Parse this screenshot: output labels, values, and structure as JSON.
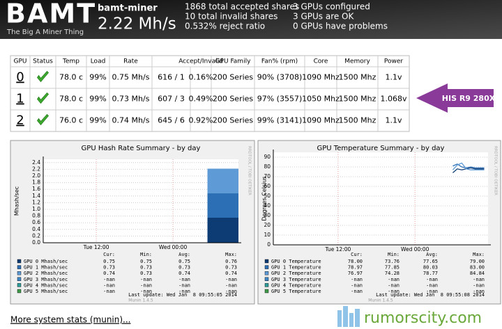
{
  "header": {
    "logo": "BAMT",
    "tagline": "The Big A Miner Thing",
    "host": "bamt-miner",
    "hashrate": "2.22 Mh/s",
    "stats": [
      [
        "1868 total accepted shares",
        "10 total invalid shares",
        "0.532% reject ratio"
      ],
      [
        "3 GPUs configured",
        "3 GPUs are OK",
        "0 GPUs have problems"
      ]
    ]
  },
  "table": {
    "columns": [
      "GPU",
      "Status",
      "Temp",
      "Load",
      "Rate",
      "Accept/Invalid",
      "GPU Family",
      "Fan% (rpm)",
      "Core",
      "Memory",
      "Power"
    ],
    "rows": [
      [
        "0",
        "78.0 c",
        "99%",
        "0.75 Mh/s",
        "616 / 1",
        "0.16%",
        "200 Series",
        "90% (3708)",
        "1090 Mhz",
        "1500 Mhz",
        "1.1v"
      ],
      [
        "1",
        "78.0 c",
        "99%",
        "0.73 Mh/s",
        "607 / 3",
        "0.49%",
        "200 Series",
        "97% (3557)",
        "1050 Mhz",
        "1500 Mhz",
        "1.068v"
      ],
      [
        "2",
        "76.0 c",
        "99%",
        "0.74 Mh/s",
        "645 / 6",
        "0.92%",
        "200 Series",
        "99% (3141)",
        "1090 Mhz",
        "1500 Mhz",
        "1.1v"
      ]
    ]
  },
  "annotation": "HIS R9 280X",
  "chart_data": [
    {
      "type": "area",
      "stacked": true,
      "title": "GPU Hash Rate Summary - by day",
      "ylabel": "Mhash/sec",
      "side_label": "RRDTOOL / TOBI OETIKER",
      "xlim": [
        3.7,
        34.25
      ],
      "xticks": [
        {
          "value": 12,
          "label": "Tue 12:00"
        },
        {
          "value": 24,
          "label": "Wed 00:00"
        }
      ],
      "ylim": [
        0,
        2.5
      ],
      "yticks": [
        {
          "value": 0,
          "label": "0.0"
        },
        0.2,
        0.4,
        0.6,
        0.8,
        {
          "value": 1,
          "label": "1.0"
        },
        1.2,
        1.4,
        1.6,
        1.8,
        {
          "value": 2,
          "label": "2.0"
        },
        2.2,
        2.4
      ],
      "grid": true,
      "stat_columns": [
        "Cur:",
        "Min:",
        "Avg:",
        "Max:"
      ],
      "series": [
        {
          "name": "GPU 0 Mhash/sec",
          "color": "#0d3b73",
          "x": [
            29.4,
            34.25
          ],
          "values": [
            0.75,
            0.75
          ],
          "stats": [
            "0.75",
            "0.75",
            "0.75",
            "0.76"
          ]
        },
        {
          "name": "GPU 1 Mhash/sec",
          "color": "#2c6fb5",
          "x": [
            29.4,
            34.25
          ],
          "values": [
            0.73,
            0.73
          ],
          "stats": [
            "0.73",
            "0.73",
            "0.73",
            "0.73"
          ]
        },
        {
          "name": "GPU 2 Mhash/sec",
          "color": "#5d9ad6",
          "x": [
            29.4,
            34.25
          ],
          "values": [
            0.74,
            0.74
          ],
          "stats": [
            "0.74",
            "0.73",
            "0.74",
            "0.74"
          ]
        },
        {
          "name": "GPU 3 Mhash/sec",
          "color": "#3f86c4",
          "x": [
            29.4,
            34.25
          ],
          "values": [
            null,
            null
          ],
          "stats": [
            "-nan",
            "-nan",
            "-nan",
            "-nan"
          ]
        },
        {
          "name": "GPU 4 Mhash/sec",
          "color": "#2e9c9a",
          "x": [
            29.4,
            34.25
          ],
          "values": [
            null,
            null
          ],
          "stats": [
            "-nan",
            "-nan",
            "-nan",
            "-nan"
          ]
        },
        {
          "name": "GPU 5 Mhash/sec",
          "color": "#3f9b4a",
          "x": [
            29.4,
            34.25
          ],
          "values": [
            null,
            null
          ],
          "stats": [
            "-nan",
            "-nan",
            "-nan",
            "-nan"
          ]
        }
      ],
      "footer": "Munin 1.4.5",
      "last_update": "Last update: Wed Jan  8 09:55:05 2014"
    },
    {
      "type": "line",
      "title": "GPU Temperature Summary - by day",
      "ylabel": "Degrees Celsius",
      "side_label": "RRDTOOL / TOBI OETIKER",
      "xlim": [
        1.9,
        35.4
      ],
      "xticks": [
        {
          "value": 12,
          "label": "Tue 12:00"
        },
        {
          "value": 24,
          "label": "Wed 00:00"
        }
      ],
      "ylim": [
        0,
        95
      ],
      "yticks": [
        0,
        10,
        20,
        30,
        40,
        50,
        60,
        70,
        80,
        90
      ],
      "grid": true,
      "stat_columns": [
        "Cur:",
        "Min:",
        "Avg:",
        "Max:"
      ],
      "series": [
        {
          "name": "GPU 0 Temperature",
          "color": "#0d3b73",
          "x": [
            29.9,
            30.6,
            31.3,
            32.0,
            32.7,
            33.4,
            34.1,
            34.8
          ],
          "values": [
            74,
            78,
            77,
            78,
            79,
            78,
            78,
            78
          ],
          "stats": [
            "78.00",
            "73.76",
            "77.65",
            "79.00"
          ]
        },
        {
          "name": "GPU 1 Temperature",
          "color": "#2c6fb5",
          "x": [
            29.9,
            30.6,
            31.3,
            32.0,
            32.7,
            33.4,
            34.1,
            34.8
          ],
          "values": [
            81,
            83,
            80,
            79,
            80,
            79,
            79,
            79
          ],
          "stats": [
            "78.97",
            "77.85",
            "80.03",
            "83.00"
          ]
        },
        {
          "name": "GPU 2 Temperature",
          "color": "#5d9ad6",
          "x": [
            29.9,
            30.6,
            31.3,
            32.0,
            32.7,
            33.4,
            34.1,
            34.8
          ],
          "values": [
            77,
            82,
            84,
            78,
            77,
            77,
            77,
            77
          ],
          "stats": [
            "76.97",
            "74.28",
            "78.77",
            "84.84"
          ]
        },
        {
          "name": "GPU 3 Temperature",
          "color": "#3f86c4",
          "x": [
            29.9,
            30.6,
            31.3,
            32.0,
            32.7,
            33.4,
            34.1,
            34.8
          ],
          "values": [
            null,
            null,
            null,
            null,
            null,
            null,
            null,
            null
          ],
          "stats": [
            "-nan",
            "-nan",
            "-nan",
            "-nan"
          ]
        },
        {
          "name": "GPU 4 Temperature",
          "color": "#2e9c9a",
          "x": [
            29.9,
            30.6,
            31.3,
            32.0,
            32.7,
            33.4,
            34.1,
            34.8
          ],
          "values": [
            null,
            null,
            null,
            null,
            null,
            null,
            null,
            null
          ],
          "stats": [
            "-nan",
            "-nan",
            "-nan",
            "-nan"
          ]
        },
        {
          "name": "GPU 5 Temperature",
          "color": "#3f9b4a",
          "x": [
            29.9,
            30.6,
            31.3,
            32.0,
            32.7,
            33.4,
            34.1,
            34.8
          ],
          "values": [
            null,
            null,
            null,
            null,
            null,
            null,
            null,
            null
          ],
          "stats": [
            "-nan",
            "-nan",
            "-nan",
            "-nan"
          ]
        }
      ],
      "footer": "Munin 1.4.5",
      "last_update": "Last update: Wed Jan  8 09:55:08 2014"
    }
  ],
  "footer": {
    "link": "More system stats (munin)...",
    "watermark": "rumorscity.com"
  }
}
